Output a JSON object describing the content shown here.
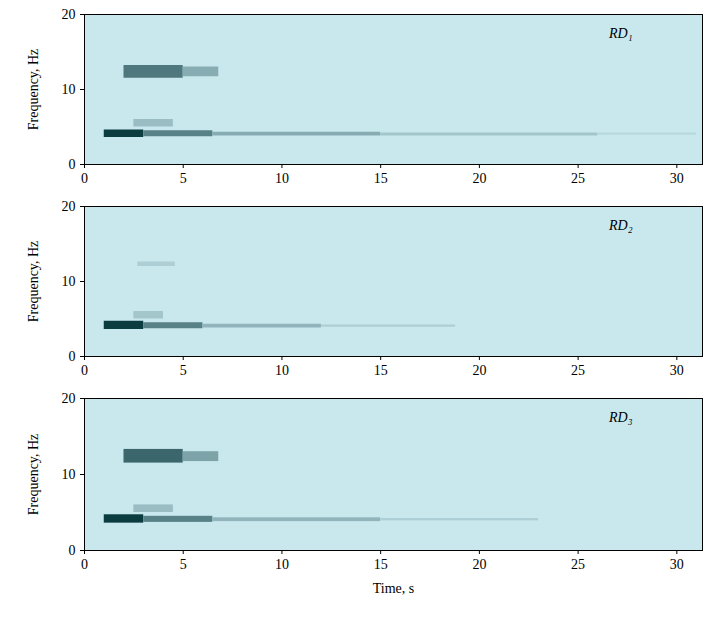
{
  "chart_data": [
    {
      "type": "heatmap",
      "annotation": "RD₁",
      "color": "#0b3c40",
      "grid": false,
      "ylabel": "Frequency, Hz",
      "xlim": [
        0,
        31.3
      ],
      "xticks": [
        0,
        5,
        10,
        15,
        20,
        25,
        30
      ],
      "ylim": [
        0,
        20
      ],
      "yticks": [
        0,
        10,
        20
      ],
      "cells": [
        {
          "t0": 1.0,
          "t1": 3.0,
          "f0": 3.6,
          "f1": 4.6,
          "value": 1.0
        },
        {
          "t0": 3.0,
          "t1": 6.5,
          "f0": 3.7,
          "f1": 4.5,
          "value": 0.6
        },
        {
          "t0": 6.5,
          "t1": 15.0,
          "f0": 3.8,
          "f1": 4.3,
          "value": 0.35
        },
        {
          "t0": 15.0,
          "t1": 26.0,
          "f0": 3.8,
          "f1": 4.2,
          "value": 0.2
        },
        {
          "t0": 26.0,
          "t1": 31.0,
          "f0": 3.9,
          "f1": 4.2,
          "value": 0.1
        },
        {
          "t0": 2.5,
          "t1": 4.5,
          "f0": 5.0,
          "f1": 6.0,
          "value": 0.25
        },
        {
          "t0": 2.0,
          "t1": 5.0,
          "f0": 11.5,
          "f1": 13.2,
          "value": 0.65
        },
        {
          "t0": 5.0,
          "t1": 6.8,
          "f0": 11.7,
          "f1": 13.0,
          "value": 0.35
        }
      ]
    },
    {
      "type": "heatmap",
      "annotation": "RD₂",
      "color": "#0b3c40",
      "grid": false,
      "ylabel": "Frequency, Hz",
      "xlim": [
        0,
        31.3
      ],
      "xticks": [
        0,
        5,
        10,
        15,
        20,
        25,
        30
      ],
      "ylim": [
        0,
        20
      ],
      "yticks": [
        0,
        10,
        20
      ],
      "cells": [
        {
          "t0": 1.0,
          "t1": 3.0,
          "f0": 3.6,
          "f1": 4.7,
          "value": 1.0
        },
        {
          "t0": 3.0,
          "t1": 6.0,
          "f0": 3.7,
          "f1": 4.5,
          "value": 0.6
        },
        {
          "t0": 6.0,
          "t1": 12.0,
          "f0": 3.8,
          "f1": 4.3,
          "value": 0.3
        },
        {
          "t0": 12.0,
          "t1": 18.8,
          "f0": 3.9,
          "f1": 4.2,
          "value": 0.15
        },
        {
          "t0": 2.5,
          "t1": 4.0,
          "f0": 5.0,
          "f1": 6.0,
          "value": 0.2
        },
        {
          "t0": 2.7,
          "t1": 4.6,
          "f0": 12.0,
          "f1": 12.6,
          "value": 0.15
        }
      ]
    },
    {
      "type": "heatmap",
      "annotation": "RD₃",
      "color": "#0b3c40",
      "grid": false,
      "xlabel": "Time, s",
      "ylabel": "Frequency, Hz",
      "xlim": [
        0,
        31.3
      ],
      "xticks": [
        0,
        5,
        10,
        15,
        20,
        25,
        30
      ],
      "ylim": [
        0,
        20
      ],
      "yticks": [
        0,
        10,
        20
      ],
      "cells": [
        {
          "t0": 1.0,
          "t1": 3.0,
          "f0": 3.6,
          "f1": 4.7,
          "value": 1.0
        },
        {
          "t0": 3.0,
          "t1": 6.5,
          "f0": 3.7,
          "f1": 4.5,
          "value": 0.6
        },
        {
          "t0": 6.5,
          "t1": 15.0,
          "f0": 3.8,
          "f1": 4.3,
          "value": 0.3
        },
        {
          "t0": 15.0,
          "t1": 23.0,
          "f0": 3.9,
          "f1": 4.2,
          "value": 0.15
        },
        {
          "t0": 2.5,
          "t1": 4.5,
          "f0": 5.0,
          "f1": 6.0,
          "value": 0.25
        },
        {
          "t0": 2.0,
          "t1": 5.0,
          "f0": 11.5,
          "f1": 13.3,
          "value": 0.75
        },
        {
          "t0": 5.0,
          "t1": 6.8,
          "f0": 11.7,
          "f1": 13.0,
          "value": 0.4
        }
      ]
    }
  ]
}
